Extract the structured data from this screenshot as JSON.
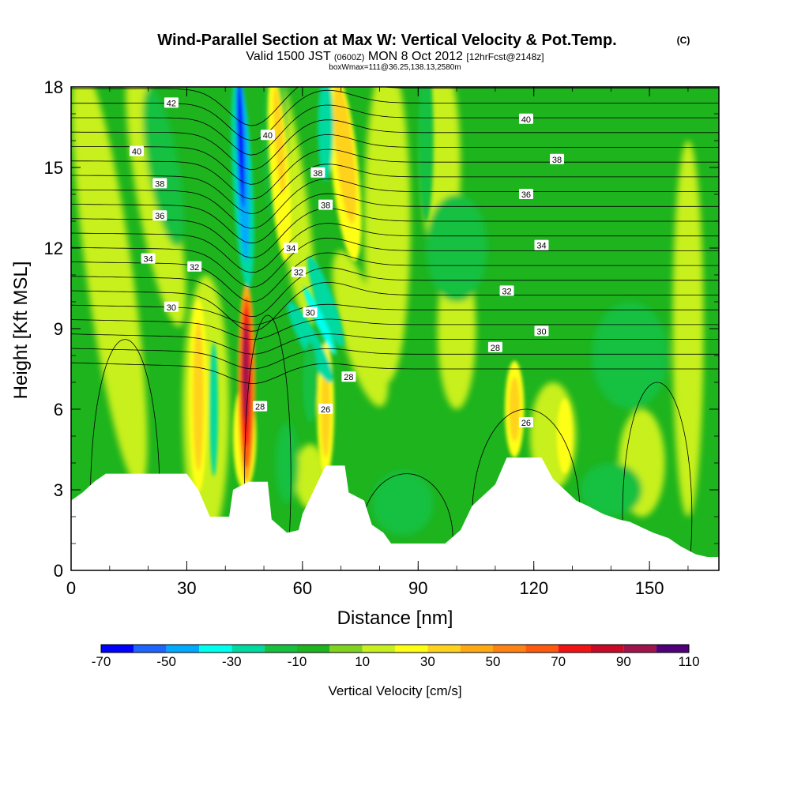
{
  "chart_data": {
    "type": "heatmap",
    "title": "Wind-Parallel Section at Max W: Vertical Velocity & Pot.Temp.",
    "title_mark": "(C)",
    "subtitle": {
      "prefix": "Valid 1500 JST",
      "utc": "(0600Z)",
      "date": "MON 8 Oct 2012",
      "forecast": "[12hrFcst@2148z]"
    },
    "subtitle2": "boxWmax=111@36.25,138.13,2580m",
    "xlabel": "Distance [nm]",
    "ylabel": "Height [Kft MSL]",
    "xlim": [
      0,
      168
    ],
    "ylim": [
      0,
      18
    ],
    "x_ticks": [
      "0",
      "30",
      "60",
      "90",
      "120",
      "150"
    ],
    "y_ticks": [
      "0",
      "3",
      "6",
      "9",
      "12",
      "15",
      "18"
    ],
    "colorbar": {
      "label": "Vertical Velocity [cm/s]",
      "levels": [
        -70,
        -60,
        -50,
        -40,
        -30,
        -20,
        -10,
        0,
        10,
        20,
        30,
        40,
        50,
        60,
        70,
        80,
        90,
        100,
        110
      ],
      "tick_labels": [
        "-70",
        "-50",
        "-30",
        "-10",
        "10",
        "30",
        "50",
        "70",
        "90",
        "110"
      ],
      "colors": [
        "#0000ff",
        "#1e64ff",
        "#00aaff",
        "#00ffee",
        "#00d9a0",
        "#18c040",
        "#1eb41e",
        "#7fd21e",
        "#c8f01e",
        "#ffff14",
        "#ffd21e",
        "#ffaa14",
        "#ff8214",
        "#ff5a0f",
        "#f01414",
        "#c80a28",
        "#a0144b",
        "#500078"
      ]
    },
    "vertical_velocity_features": [
      {
        "label": "strong updraft core",
        "x": 45,
        "z": [
          3.5,
          10.5
        ],
        "max": 110
      },
      {
        "label": "updraft",
        "x": 33,
        "z": [
          3.5,
          10
        ],
        "max": 30
      },
      {
        "label": "downdraft",
        "x": 44,
        "z": [
          11,
          18
        ],
        "min": -70
      },
      {
        "label": "updraft",
        "x": 71,
        "z": [
          12,
          18
        ],
        "max": 30
      },
      {
        "label": "downdraft",
        "x": 67,
        "z": [
          7,
          12
        ],
        "min": -30
      },
      {
        "label": "updraft",
        "x": 115,
        "z": [
          5,
          7.5
        ],
        "max": 30
      }
    ],
    "potential_temperature_labels": [
      {
        "text": "42",
        "x": 26,
        "z": 17.4
      },
      {
        "text": "40",
        "x": 17,
        "z": 15.6
      },
      {
        "text": "38",
        "x": 23,
        "z": 14.4
      },
      {
        "text": "36",
        "x": 23,
        "z": 13.2
      },
      {
        "text": "34",
        "x": 20,
        "z": 11.6
      },
      {
        "text": "32",
        "x": 32,
        "z": 11.3
      },
      {
        "text": "30",
        "x": 26,
        "z": 9.8
      },
      {
        "text": "40",
        "x": 51,
        "z": 16.2
      },
      {
        "text": "38",
        "x": 64,
        "z": 14.8
      },
      {
        "text": "38",
        "x": 66,
        "z": 13.6
      },
      {
        "text": "34",
        "x": 57,
        "z": 12.0
      },
      {
        "text": "32",
        "x": 59,
        "z": 11.1
      },
      {
        "text": "30",
        "x": 62,
        "z": 9.6
      },
      {
        "text": "28",
        "x": 72,
        "z": 7.2
      },
      {
        "text": "26",
        "x": 66,
        "z": 6.0
      },
      {
        "text": "28",
        "x": 49,
        "z": 6.1
      },
      {
        "text": "40",
        "x": 118,
        "z": 16.8
      },
      {
        "text": "38",
        "x": 126,
        "z": 15.3
      },
      {
        "text": "36",
        "x": 118,
        "z": 14.0
      },
      {
        "text": "34",
        "x": 122,
        "z": 12.1
      },
      {
        "text": "32",
        "x": 113,
        "z": 10.4
      },
      {
        "text": "30",
        "x": 122,
        "z": 8.9
      },
      {
        "text": "28",
        "x": 110,
        "z": 8.3
      },
      {
        "text": "26",
        "x": 118,
        "z": 5.5
      }
    ],
    "terrain_height": [
      [
        0,
        2.6
      ],
      [
        3,
        2.9
      ],
      [
        6,
        3.3
      ],
      [
        9,
        3.6
      ],
      [
        30,
        3.6
      ],
      [
        33,
        3.0
      ],
      [
        36,
        2.0
      ],
      [
        41,
        2.0
      ],
      [
        42,
        3.0
      ],
      [
        46,
        3.3
      ],
      [
        51,
        3.3
      ],
      [
        52,
        1.9
      ],
      [
        56,
        1.4
      ],
      [
        59,
        1.5
      ],
      [
        60,
        2.1
      ],
      [
        63,
        3.0
      ],
      [
        66,
        3.9
      ],
      [
        71,
        3.9
      ],
      [
        72,
        2.9
      ],
      [
        76,
        2.6
      ],
      [
        78,
        1.7
      ],
      [
        81,
        1.4
      ],
      [
        83,
        1.0
      ],
      [
        97,
        1.0
      ],
      [
        101,
        1.5
      ],
      [
        104,
        2.4
      ],
      [
        107,
        2.8
      ],
      [
        110,
        3.2
      ],
      [
        113,
        4.2
      ],
      [
        122,
        4.2
      ],
      [
        125,
        3.4
      ],
      [
        128,
        3.0
      ],
      [
        131,
        2.6
      ],
      [
        134,
        2.4
      ],
      [
        138,
        2.1
      ],
      [
        142,
        1.9
      ],
      [
        145,
        1.8
      ],
      [
        148,
        1.6
      ],
      [
        151,
        1.4
      ],
      [
        155,
        1.2
      ],
      [
        158,
        0.9
      ],
      [
        162,
        0.6
      ],
      [
        165,
        0.5
      ],
      [
        168,
        0.5
      ]
    ]
  }
}
